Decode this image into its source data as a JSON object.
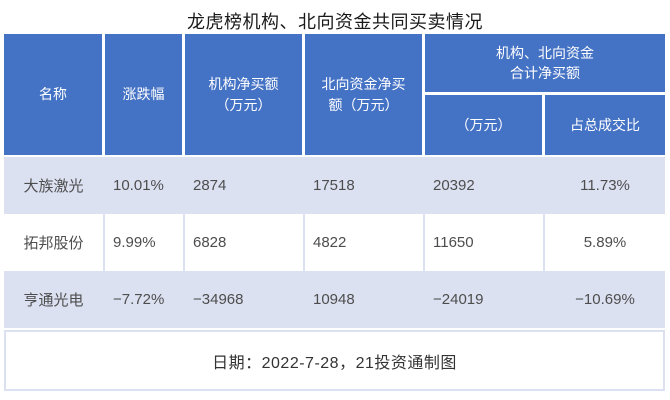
{
  "title": "龙虎榜机构、北向资金共同买卖情况",
  "colors": {
    "header_bg": "#4472c4",
    "stripe_bg": "#dce1f2",
    "body_text": "#4d4d4d",
    "header_text": "#ffffff"
  },
  "table": {
    "headers": {
      "name": "名称",
      "change": "涨跌幅",
      "inst_net": "机构净买额\n（万元）",
      "north_net": "北向资金净买\n额（万元）",
      "group": "机构、北向资金\n合计净买额",
      "group_sub_amount": "（万元）",
      "group_sub_ratio": "占总成交比"
    },
    "rows": [
      {
        "name": "大族激光",
        "change": "10.01%",
        "inst_net": "2874",
        "north_net": "17518",
        "combined_net": "20392",
        "pct_of_turnover": "11.73%"
      },
      {
        "name": "拓邦股份",
        "change": "9.99%",
        "inst_net": "6828",
        "north_net": "4822",
        "combined_net": "11650",
        "pct_of_turnover": "5.89%"
      },
      {
        "name": "亨通光电",
        "change": "−7.72%",
        "inst_net": "−34968",
        "north_net": "10948",
        "combined_net": "−24019",
        "pct_of_turnover": "−10.69%"
      }
    ],
    "footer": "日期：2022-7-28，21投资通制图"
  }
}
